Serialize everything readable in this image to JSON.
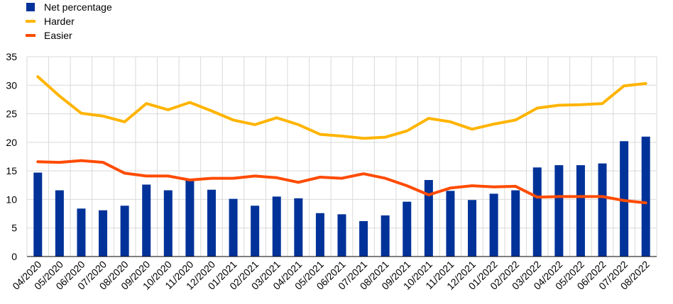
{
  "chart_data": {
    "type": "bar",
    "categories": [
      "04/2020",
      "05/2020",
      "06/2020",
      "07/2020",
      "08/2020",
      "09/2020",
      "10/2020",
      "11/2020",
      "12/2020",
      "01/2021",
      "02/2021",
      "03/2021",
      "04/2021",
      "05/2021",
      "06/2021",
      "07/2021",
      "08/2021",
      "09/2021",
      "10/2021",
      "11/2021",
      "12/2021",
      "01/2022",
      "02/2022",
      "03/2022",
      "04/2022",
      "05/2022",
      "06/2022",
      "07/2022",
      "08/2022"
    ],
    "series": [
      {
        "name": "Net percentage",
        "type": "bar",
        "color": "#003299",
        "values": [
          14.7,
          11.6,
          8.4,
          8.1,
          8.9,
          12.6,
          11.6,
          13.4,
          11.7,
          10.1,
          8.9,
          10.5,
          10.2,
          7.6,
          7.4,
          6.2,
          7.2,
          9.6,
          13.4,
          11.5,
          9.9,
          11.0,
          11.6,
          15.6,
          16.0,
          16.0,
          16.3,
          20.2,
          21.0
        ]
      },
      {
        "name": "Harder",
        "type": "line",
        "color": "#FFB400",
        "values": [
          31.5,
          28.1,
          25.1,
          24.6,
          23.6,
          26.8,
          25.7,
          27.0,
          25.5,
          23.9,
          23.1,
          24.3,
          23.1,
          21.4,
          21.1,
          20.7,
          20.9,
          22.0,
          24.2,
          23.6,
          22.3,
          23.2,
          23.9,
          26.0,
          26.5,
          26.6,
          26.8,
          29.9,
          30.3
        ]
      },
      {
        "name": "Easier",
        "type": "line",
        "color": "#FF4B00",
        "values": [
          16.6,
          16.5,
          16.8,
          16.5,
          14.6,
          14.1,
          14.1,
          13.4,
          13.7,
          13.7,
          14.1,
          13.8,
          13.0,
          13.9,
          13.7,
          14.5,
          13.7,
          12.4,
          10.8,
          12.0,
          12.4,
          12.2,
          12.3,
          10.4,
          10.5,
          10.5,
          10.5,
          9.8,
          9.4
        ]
      }
    ],
    "y_ticks": [
      "0",
      "5",
      "10",
      "15",
      "20",
      "25",
      "30",
      "35"
    ],
    "ylim": [
      0,
      35
    ],
    "grid": true,
    "legend_position": "top-left"
  }
}
